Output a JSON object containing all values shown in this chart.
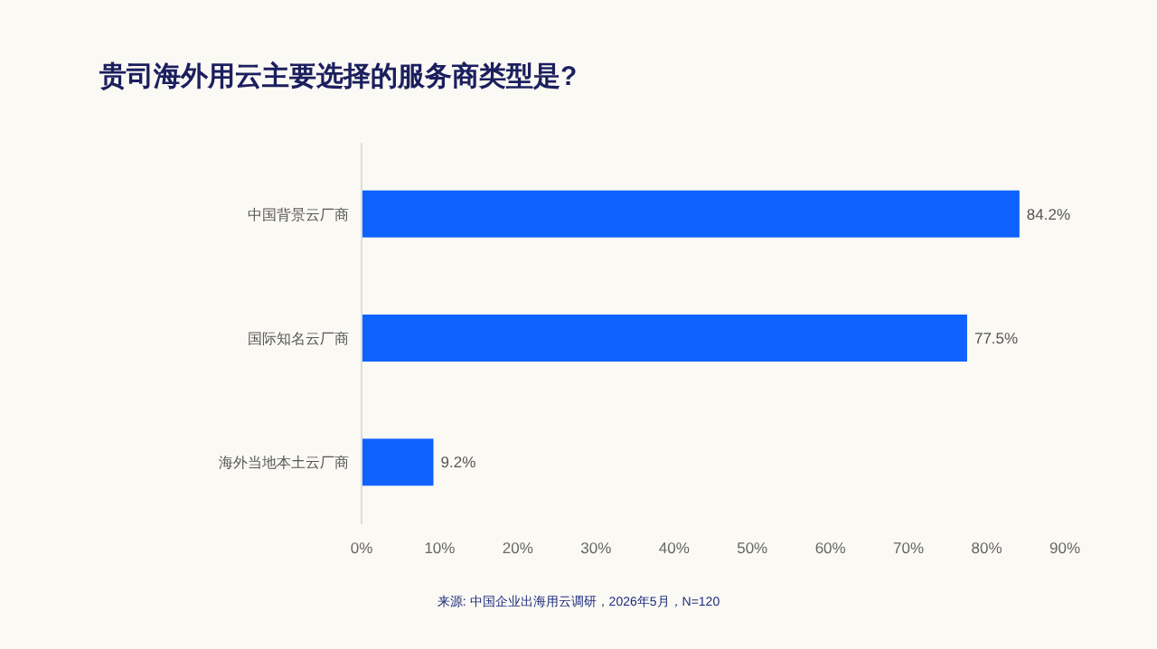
{
  "chart_data": {
    "type": "bar",
    "orientation": "horizontal",
    "title": "贵司海外用云主要选择的服务商类型是?",
    "categories": [
      "中国背景云厂商",
      "国际知名云厂商",
      "海外当地本土云厂商"
    ],
    "values": [
      84.2,
      77.5,
      9.2
    ],
    "color": "#0f62fe",
    "value_labels": [
      "84.2%",
      "77.5%",
      "9.2%"
    ],
    "xlim": [
      0,
      90
    ],
    "xticks": [
      {
        "value": 0,
        "label": "0%"
      },
      {
        "value": 10,
        "label": "10%"
      },
      {
        "value": 20,
        "label": "20%"
      },
      {
        "value": 30,
        "label": "30%"
      },
      {
        "value": 40,
        "label": "40%"
      },
      {
        "value": 50,
        "label": "50%"
      },
      {
        "value": 60,
        "label": "60%"
      },
      {
        "value": 70,
        "label": "70%"
      },
      {
        "value": 80,
        "label": "80%"
      },
      {
        "value": 90,
        "label": "90%"
      }
    ],
    "grid": false,
    "annotations": [
      "来源: 中国企业出海用云调研，2026年5月，N=120"
    ]
  }
}
